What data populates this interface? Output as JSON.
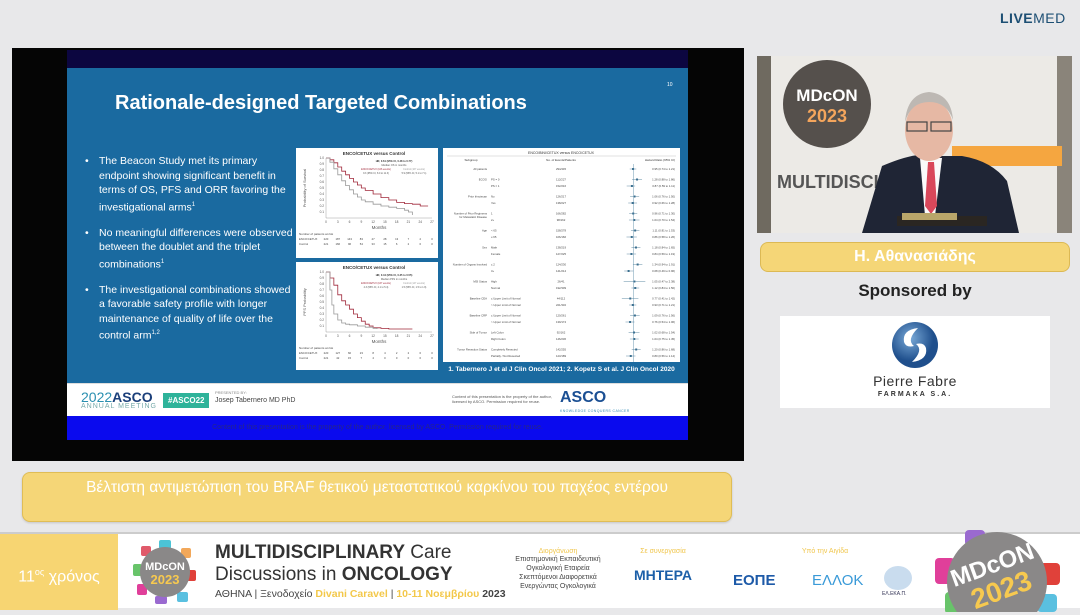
{
  "brand": {
    "livemed_bold": "LIVE",
    "livemed_light": "MED"
  },
  "slide": {
    "title": "Rationale-designed Targeted Combinations",
    "page_number": "10",
    "bullets": [
      {
        "text": "The Beacon Study met its primary endpoint showing significant benefit in terms of OS, PFS and ORR favoring the investigational arms",
        "sup": "1"
      },
      {
        "text": "No meaningful differences were observed between the doublet and the triplet combinations",
        "sup": "1"
      },
      {
        "text": "The investigational combinations showed a favorable safety profile with longer maintenance of quality of life over the control arm",
        "sup": "1,2"
      }
    ],
    "references": "1. Tabernero J et al J Clin Oncol 2021; 2. Kopetz S et al. J Clin Oncol 2020",
    "footer": {
      "asco_year": "2022",
      "asco_name": "ASCO",
      "asco_meeting": "ANNUAL MEETING",
      "hashtag": "#ASCO22",
      "presented_by": "PRESENTED BY:",
      "presenter": "Josep Tabernero MD PhD",
      "copyright": "Content of this presentation is the property of the author, licensed by ASCO. Permission required for reuse.",
      "asco_logo": "ASCO",
      "asco_tagline": "KNOWLEDGE CONQUERS CANCER"
    },
    "bottom_notice": "Content of this presentation is the property of the author, licensed by ASCO. Permission required for reuse."
  },
  "chart_data": [
    {
      "type": "line",
      "title": "ENCO/CETUX versus Control",
      "ylabel": "Probability of Survival",
      "xlabel": "Months",
      "xlim": [
        0,
        27
      ],
      "ylim": [
        0,
        1.0
      ],
      "xticks": [
        0,
        3,
        6,
        9,
        12,
        15,
        18,
        21,
        24,
        27
      ],
      "yticks": [
        0.1,
        0.2,
        0.3,
        0.4,
        0.5,
        0.6,
        0.7,
        0.8,
        0.9,
        1.0
      ],
      "hr": "HR, 0.61 (95% CI, 0.48 to 0.77)",
      "median_label": "Median OS in months",
      "series": [
        {
          "name": "ENCO/CETUX (106 events)",
          "median": "9.3 (95% CI, 8.0 to 11.3)",
          "color": "#a0283a",
          "x": [
            0,
            1,
            2,
            3,
            4,
            5,
            6,
            7,
            8,
            9,
            10,
            12,
            14,
            16,
            18,
            20,
            22,
            24,
            26
          ],
          "y": [
            1,
            0.97,
            0.92,
            0.85,
            0.78,
            0.72,
            0.66,
            0.6,
            0.55,
            0.5,
            0.46,
            0.4,
            0.34,
            0.3,
            0.26,
            0.24,
            0.23,
            0.2,
            0.2
          ]
        },
        {
          "name": "Control (167 events)",
          "median": "5.9 (95% CI, 5.1 to 7.1)",
          "color": "#999999",
          "x": [
            0,
            1,
            2,
            3,
            4,
            5,
            6,
            7,
            8,
            9,
            10,
            12,
            14,
            16,
            18,
            20,
            21,
            22
          ],
          "y": [
            1,
            0.93,
            0.82,
            0.72,
            0.62,
            0.54,
            0.47,
            0.4,
            0.35,
            0.3,
            0.27,
            0.23,
            0.2,
            0.18,
            0.16,
            0.13,
            0.1,
            0.05
          ]
        }
      ],
      "at_risk_label": "Number of patients at risk",
      "at_risk": [
        {
          "arm": "ENCO/CETUX",
          "values": [
            220,
            187,
            143,
            83,
            47,
            28,
            13,
            7,
            2,
            0
          ]
        },
        {
          "arm": "Control",
          "values": [
            221,
            166,
            96,
            54,
            33,
            15,
            6,
            2,
            0,
            0
          ]
        }
      ]
    },
    {
      "type": "line",
      "title": "ENCO/CETUX versus Control",
      "ylabel": "PFS Probability",
      "xlabel": "Months",
      "xlim": [
        0,
        27
      ],
      "ylim": [
        0,
        1.0
      ],
      "xticks": [
        0,
        3,
        6,
        9,
        12,
        15,
        18,
        21,
        24,
        27
      ],
      "yticks": [
        0.1,
        0.2,
        0.3,
        0.4,
        0.5,
        0.6,
        0.7,
        0.8,
        0.9,
        1.0
      ],
      "hr": "HR, 0.44 (95% CI, 0.35 to 0.55)",
      "median_label": "Median PFS in months",
      "series": [
        {
          "name": "ENCO/CETUX (167 events)",
          "median": "4.3 (95% CI, 4.1 to 5.4)",
          "color": "#a0283a",
          "x": [
            0,
            1,
            2,
            3,
            4,
            5,
            6,
            7,
            8,
            9,
            10,
            11,
            12,
            14,
            16,
            18,
            20,
            22
          ],
          "y": [
            1,
            0.9,
            0.78,
            0.62,
            0.52,
            0.45,
            0.38,
            0.3,
            0.24,
            0.18,
            0.13,
            0.1,
            0.07,
            0.06,
            0.05,
            0.05,
            0.05,
            0.05
          ]
        },
        {
          "name": "Control (147 events)",
          "median": "1.5 (95% CI, 1.5 to 1.9)",
          "color": "#999999",
          "x": [
            0,
            1,
            1.5,
            2,
            3,
            4,
            5,
            6,
            8,
            10,
            12,
            13
          ],
          "y": [
            1,
            0.7,
            0.45,
            0.3,
            0.2,
            0.15,
            0.13,
            0.12,
            0.1,
            0.08,
            0.06,
            0.05
          ]
        }
      ],
      "at_risk_label": "Number of patients at risk",
      "at_risk": [
        {
          "arm": "ENCO/CETUX",
          "values": [
            220,
            127,
            60,
            23,
            8,
            4,
            2,
            2,
            0,
            0
          ]
        },
        {
          "arm": "Control",
          "values": [
            221,
            42,
            15,
            7,
            4,
            0,
            0,
            0,
            0,
            0
          ]
        }
      ]
    },
    {
      "type": "forest",
      "title": "ENCO/BINI/CETUX versus ENCO/CETUX",
      "headers": [
        "Subgroup",
        "No. of Events/Patients",
        "Hazard Ratio (95% CI)"
      ],
      "xscale": "log",
      "xticks": [
        0.1,
        0.2,
        0.5,
        1.0,
        2.0
      ],
      "favors_left": "ENCO/BINI/CETUX Better",
      "favors_right": "ENCO/CETUX Better",
      "rows": [
        {
          "group": "All patients",
          "sub": "",
          "n": "294/445",
          "hr": 0.95,
          "lo": 0.74,
          "hi": 1.21,
          "label": "0.95 (0.74 to 1.21)"
        },
        {
          "group": "ECOG",
          "sub": "PS = 0",
          "n": "112/227",
          "hr": 1.28,
          "lo": 0.88,
          "hi": 1.86,
          "label": "1.28 (0.88 to 1.86)"
        },
        {
          "group": "",
          "sub": "PS = 1",
          "n": "152/216",
          "hr": 0.87,
          "lo": 0.59,
          "hi": 1.11,
          "label": "0.87 (0.59 to 1.11)"
        },
        {
          "group": "Prior Irinotecan",
          "sub": "No",
          "n": "126/217",
          "hr": 1.06,
          "lo": 0.76,
          "hi": 1.5,
          "label": "1.06 (0.76 to 1.50)"
        },
        {
          "group": "",
          "sub": "Yes",
          "n": "138/227",
          "hr": 0.92,
          "lo": 0.66,
          "hi": 1.28,
          "label": "0.92 (0.66 to 1.28)"
        },
        {
          "group": "Number of Prior Regimens for Metastatic Disease",
          "sub": "1",
          "n": "166/282",
          "hr": 0.96,
          "lo": 0.71,
          "hi": 1.3,
          "label": "0.96 (0.71 to 1.30)"
        },
        {
          "group": "",
          "sub": "2+",
          "n": "98/162",
          "hr": 1.04,
          "lo": 0.7,
          "hi": 1.54,
          "label": "1.04 (0.70 to 1.54)"
        },
        {
          "group": "Age",
          "sub": "< 65",
          "n": "158/278",
          "hr": 1.11,
          "lo": 0.81,
          "hi": 1.53,
          "label": "1.11 (0.81 to 1.53)"
        },
        {
          "group": "",
          "sub": "≥ 65",
          "n": "106/166",
          "hr": 0.86,
          "lo": 0.58,
          "hi": 1.26,
          "label": "0.86 (0.58 to 1.26)"
        },
        {
          "group": "Sex",
          "sub": "Male",
          "n": "138/219",
          "hr": 1.18,
          "lo": 0.84,
          "hi": 1.65,
          "label": "1.18 (0.84 to 1.65)"
        },
        {
          "group": "",
          "sub": "Female",
          "n": "127/225",
          "hr": 0.84,
          "lo": 0.59,
          "hi": 1.19,
          "label": "0.84 (0.59 to 1.19)"
        },
        {
          "group": "Number of Organs Involved",
          "sub": "≤ 2",
          "n": "124/230",
          "hr": 1.34,
          "lo": 0.94,
          "hi": 1.91,
          "label": "1.34 (0.94 to 1.91)"
        },
        {
          "group": "",
          "sub": "3+",
          "n": "141/214",
          "hr": 0.68,
          "lo": 0.49,
          "hi": 0.96,
          "label": "0.68 (0.49 to 0.96)"
        },
        {
          "group": "MSI Status",
          "sub": "High",
          "n": "26/41",
          "hr": 1.05,
          "lo": 0.47,
          "hi": 2.38,
          "label": "1.05 (0.47 to 2.38)"
        },
        {
          "group": "",
          "sub": "Normal",
          "n": "192/309",
          "hr": 1.12,
          "lo": 0.84,
          "hi": 1.5,
          "label": "1.12 (0.84 to 1.50)"
        },
        {
          "group": "Baseline CEA",
          "sub": "≤ Upper Limit of Normal",
          "n": "44/112",
          "hr": 0.77,
          "lo": 0.41,
          "hi": 1.42,
          "label": "0.77 (0.41 to 1.42)"
        },
        {
          "group": "",
          "sub": "> Upper Limit of Normal",
          "n": "221/332",
          "hr": 0.93,
          "lo": 0.71,
          "hi": 1.21,
          "label": "0.93 (0.71 to 1.21)"
        },
        {
          "group": "Baseline CRP",
          "sub": "≤ Upper Limit of Normal",
          "n": "120/261",
          "hr": 1.09,
          "lo": 0.76,
          "hi": 1.56,
          "label": "1.09 (0.76 to 1.56)"
        },
        {
          "group": "",
          "sub": "> Upper Limit of Normal",
          "n": "139/174",
          "hr": 0.76,
          "lo": 0.54,
          "hi": 1.06,
          "label": "0.76 (0.54 to 1.06)"
        },
        {
          "group": "Side of Tumor",
          "sub": "Left Colon",
          "n": "92/162",
          "hr": 1.02,
          "lo": 0.68,
          "hi": 1.54,
          "label": "1.02 (0.68 to 1.54)"
        },
        {
          "group": "",
          "sub": "Right Colon",
          "n": "146/236",
          "hr": 1.04,
          "lo": 0.75,
          "hi": 1.45,
          "label": "1.04 (0.75 to 1.45)"
        },
        {
          "group": "Tumor Resection Status",
          "sub": "Completely Resected",
          "n": "142/255",
          "hr": 1.2,
          "lo": 0.86,
          "hi": 1.68,
          "label": "1.20 (0.86 to 1.68)"
        },
        {
          "group": "",
          "sub": "Partially / Not Resected",
          "n": "123/189",
          "hr": 0.8,
          "lo": 0.56,
          "hi": 1.14,
          "label": "0.80 (0.56 to 1.14)"
        }
      ]
    }
  ],
  "topic": "Βέλτιστη αντιμετώπιση του BRAF θετικού μεταστατικού καρκίνου του παχέος εντέρου",
  "speaker": {
    "name": "Η. Αθανασιάδης"
  },
  "sponsor": {
    "label": "Sponsored by",
    "name": "Pierre Fabre",
    "sub": "FARMAKA S.A."
  },
  "banner": {
    "year_num": "11",
    "year_sup": "ος",
    "year_word": "χρόνος",
    "logo_top": "MDcON",
    "logo_year": "2023",
    "title_a": "MULTIDISCIPLINARY",
    "title_b": "Care",
    "title_c": "Discussions in",
    "title_d": "ONCOLOGY",
    "venue_city": "ΑΘΗΝΑ | Ξενοδοχείο",
    "venue_hotel": "Divani Caravel",
    "venue_sep": "|",
    "venue_dates": "10-11 Νοεμβρίου",
    "venue_year": "2023",
    "organizer_label": "Διοργάνωση",
    "organizer": [
      "Επιστημονική Εκπαιδευτική",
      "Ογκολογική Εταιρεία",
      "Σκεπτόμενοι Διαφορετικά",
      "Ενεργώντας Ογκολογικά"
    ],
    "partner_label": "Σε συνεργασία",
    "partner": "ΜΗΤΕΡΑ",
    "auspices_label": "Υπό την Αιγίδα",
    "auspices": [
      "ΕΟΠΕ",
      "ΕΛΛΟΚ",
      "ΕΛ.ΕΚΑ.Π."
    ]
  },
  "colors": {
    "slide_blue": "#1a6aa0",
    "accent_yellow": "#f5d677",
    "asco_blue": "#1b4f93",
    "enco_cetux": "#a0283a",
    "control": "#999999"
  }
}
